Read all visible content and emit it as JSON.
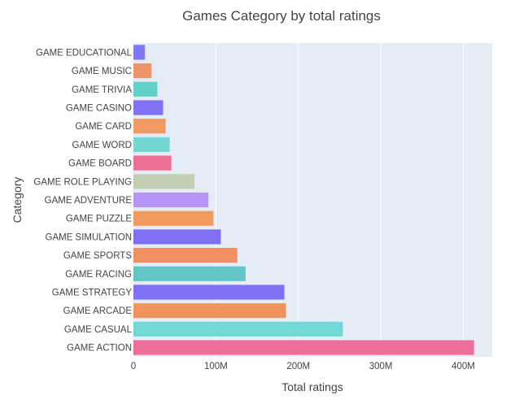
{
  "chart_data": {
    "type": "bar",
    "orientation": "horizontal",
    "title": "Games Category by total ratings",
    "xlabel": "Total ratings",
    "ylabel": "Category",
    "xlim": [
      0,
      435000000
    ],
    "x_ticks": [
      0,
      100000000,
      200000000,
      300000000,
      400000000
    ],
    "x_tick_labels": [
      "0",
      "100M",
      "200M",
      "300M",
      "400M"
    ],
    "grid": true,
    "plot_background": "#e5ecf6",
    "categories": [
      "GAME EDUCATIONAL",
      "GAME MUSIC",
      "GAME TRIVIA",
      "GAME CASINO",
      "GAME CARD",
      "GAME WORD",
      "GAME BOARD",
      "GAME ROLE PLAYING",
      "GAME ADVENTURE",
      "GAME PUZZLE",
      "GAME SIMULATION",
      "GAME SPORTS",
      "GAME RACING",
      "GAME STRATEGY",
      "GAME ARCADE",
      "GAME CASUAL",
      "GAME ACTION"
    ],
    "values": [
      14000000,
      22000000,
      29000000,
      36000000,
      39000000,
      44000000,
      46000000,
      74000000,
      91000000,
      97000000,
      106000000,
      126000000,
      136000000,
      183000000,
      185000000,
      254000000,
      413000000
    ],
    "colors": [
      "#7e78f5",
      "#ef9466",
      "#62cfc8",
      "#8072f3",
      "#f09a62",
      "#72d6d2",
      "#ec6f94",
      "#c2cfb4",
      "#b695f5",
      "#f29b5f",
      "#7f6ff4",
      "#ef8f62",
      "#62c4c6",
      "#7f71f5",
      "#f0945e",
      "#72d8d6",
      "#ec6f9a"
    ]
  }
}
